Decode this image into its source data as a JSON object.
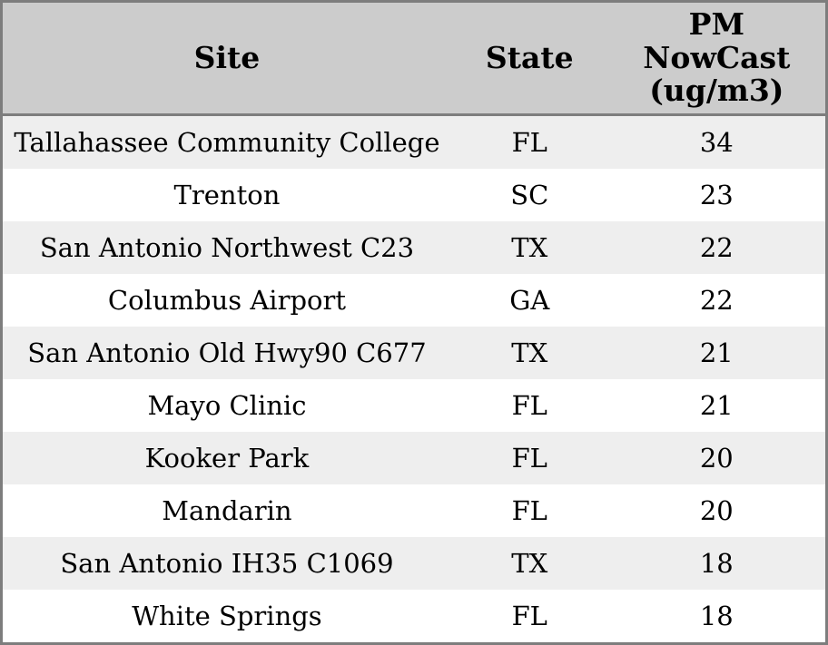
{
  "chart_data": {
    "type": "table",
    "columns": [
      "Site",
      "State",
      "PM\nNowCast\n(ug/m3)"
    ],
    "rows": [
      {
        "site": "Tallahassee Community College",
        "state": "FL",
        "pm_nowcast": "34"
      },
      {
        "site": "Trenton",
        "state": "SC",
        "pm_nowcast": "23"
      },
      {
        "site": "San Antonio Northwest C23",
        "state": "TX",
        "pm_nowcast": "22"
      },
      {
        "site": "Columbus Airport",
        "state": "GA",
        "pm_nowcast": "22"
      },
      {
        "site": "San Antonio Old Hwy90 C677",
        "state": "TX",
        "pm_nowcast": "21"
      },
      {
        "site": "Mayo Clinic",
        "state": "FL",
        "pm_nowcast": "21"
      },
      {
        "site": "Kooker Park",
        "state": "FL",
        "pm_nowcast": "20"
      },
      {
        "site": "Mandarin",
        "state": "FL",
        "pm_nowcast": "20"
      },
      {
        "site": "San Antonio IH35 C1069",
        "state": "TX",
        "pm_nowcast": "18"
      },
      {
        "site": "White Springs",
        "state": "FL",
        "pm_nowcast": "18"
      }
    ]
  },
  "colors": {
    "header_bg": "#cccccc",
    "border": "#7d7d7d",
    "row_alt_bg": "#eeeeee",
    "row_bg": "#ffffff",
    "text": "#000000"
  }
}
